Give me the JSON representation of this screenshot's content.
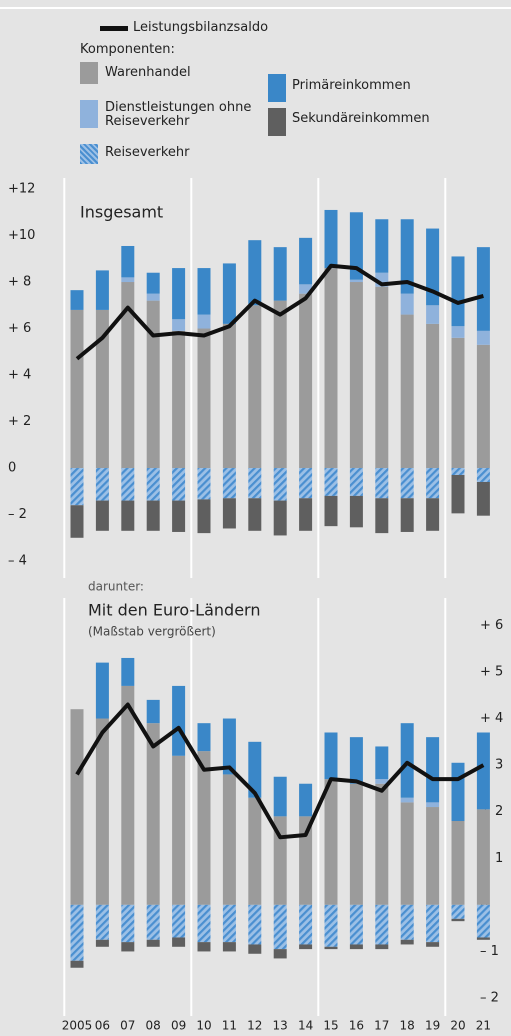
{
  "chart_data": [
    {
      "type": "bar",
      "title": "Insgesamt",
      "legend_title": "Komponenten:",
      "line": {
        "name": "Leistungsbilanzsaldo",
        "color": "#111111",
        "values": [
          4.7,
          5.6,
          6.9,
          5.7,
          5.8,
          5.7,
          6.1,
          7.2,
          6.6,
          7.3,
          8.7,
          8.6,
          7.9,
          8.0,
          7.6,
          7.1,
          7.4
        ]
      },
      "series": [
        {
          "name": "Warenhandel",
          "color": "#9b9b9b",
          "values": [
            6.8,
            6.8,
            8.0,
            7.2,
            5.9,
            6.0,
            6.2,
            7.0,
            7.2,
            7.5,
            8.6,
            8.0,
            7.8,
            6.6,
            6.2,
            5.6,
            5.3
          ]
        },
        {
          "name": "Dienstleistungen ohne Reiseverkehr",
          "color": "#8fb2dc",
          "values": [
            0,
            0,
            0.2,
            0.3,
            0.5,
            0.6,
            0,
            0,
            0,
            0.4,
            0,
            0.1,
            0.6,
            0.9,
            0.8,
            0.5,
            0.6
          ]
        },
        {
          "name": "Reiseverkehr",
          "color": "#4a8fd0",
          "pattern": "hatch",
          "values": [
            -1.6,
            -1.4,
            -1.4,
            -1.4,
            -1.4,
            -1.35,
            -1.3,
            -1.3,
            -1.4,
            -1.3,
            -1.2,
            -1.2,
            -1.3,
            -1.3,
            -1.3,
            -0.3,
            -0.6
          ]
        },
        {
          "name": "Primäreinkommen",
          "color": "#3a87c8",
          "values": [
            0.85,
            1.7,
            1.35,
            0.9,
            2.2,
            2.0,
            2.6,
            2.8,
            2.3,
            2.0,
            2.5,
            2.9,
            2.3,
            3.2,
            3.3,
            3.0,
            3.6
          ]
        },
        {
          "name": "Sekundäreinkommen",
          "color": "#5f5f5f",
          "values": [
            -1.4,
            -1.3,
            -1.3,
            -1.3,
            -1.35,
            -1.45,
            -1.3,
            -1.4,
            -1.5,
            -1.4,
            -1.3,
            -1.35,
            -1.5,
            -1.45,
            -1.4,
            -1.65,
            -1.45
          ]
        }
      ],
      "ylim": [
        -4.3,
        12.5
      ],
      "yticks": [
        {
          "value": 12,
          "label": "+12"
        },
        {
          "value": 10,
          "label": "+10"
        },
        {
          "value": 8,
          "label": "+ 8"
        },
        {
          "value": 6,
          "label": "+ 6"
        },
        {
          "value": 4,
          "label": "+ 4"
        },
        {
          "value": 2,
          "label": "+ 2"
        },
        0,
        {
          "value": -2,
          "label": "– 2"
        },
        {
          "value": -4,
          "label": "– 4"
        }
      ],
      "ytick_side": "left"
    },
    {
      "type": "bar",
      "pretitle": "darunter:",
      "title": "Mit den Euro-Ländern",
      "subtitle": "(Maßstab vergrößert)",
      "categories": [
        "2005",
        "06",
        "07",
        "08",
        "09",
        "10",
        "11",
        "12",
        "13",
        "14",
        "15",
        "16",
        "17",
        "18",
        "19",
        "20",
        "21"
      ],
      "line": {
        "values": [
          2.8,
          3.7,
          4.3,
          3.4,
          3.8,
          2.9,
          2.95,
          2.4,
          1.45,
          1.5,
          2.7,
          2.65,
          2.45,
          3.05,
          2.7,
          2.7,
          3.0
        ]
      },
      "series": [
        {
          "values": [
            4.2,
            4.0,
            4.7,
            3.9,
            3.2,
            3.3,
            2.8,
            2.3,
            1.9,
            1.9,
            2.7,
            2.6,
            2.6,
            2.2,
            2.1,
            1.8,
            2.05
          ]
        },
        {
          "values": [
            0,
            0,
            0,
            0,
            0,
            0,
            0,
            0,
            0,
            0,
            0,
            0,
            0.1,
            0.1,
            0.1,
            0,
            0
          ]
        },
        {
          "values": [
            -1.2,
            -0.75,
            -0.8,
            -0.75,
            -0.7,
            -0.8,
            -0.8,
            -0.85,
            -0.95,
            -0.85,
            -0.9,
            -0.85,
            -0.85,
            -0.75,
            -0.8,
            -0.3,
            -0.7
          ]
        },
        {
          "values": [
            0,
            1.2,
            0.6,
            0.5,
            1.5,
            0.6,
            1.2,
            1.2,
            0.85,
            0.7,
            1.0,
            1.0,
            0.7,
            1.6,
            1.4,
            1.25,
            1.65
          ]
        },
        {
          "values": [
            -0.15,
            -0.15,
            -0.2,
            -0.15,
            -0.2,
            -0.2,
            -0.2,
            -0.2,
            -0.2,
            -0.1,
            -0.05,
            -0.1,
            -0.1,
            -0.1,
            -0.1,
            -0.05,
            -0.05
          ]
        }
      ],
      "ylim": [
        -2.3,
        6.6
      ],
      "yticks": [
        {
          "value": 6,
          "label": "+ 6"
        },
        {
          "value": 5,
          "label": "+ 5"
        },
        {
          "value": 4,
          "label": "+ 4"
        },
        {
          "value": 3,
          "label": "+ 3"
        },
        {
          "value": 2,
          "label": "+ 2"
        },
        {
          "value": 1,
          "label": "+ 1"
        },
        0,
        {
          "value": -1,
          "label": "– 1"
        },
        {
          "value": -2,
          "label": "– 2"
        }
      ],
      "ytick_side": "right"
    }
  ]
}
